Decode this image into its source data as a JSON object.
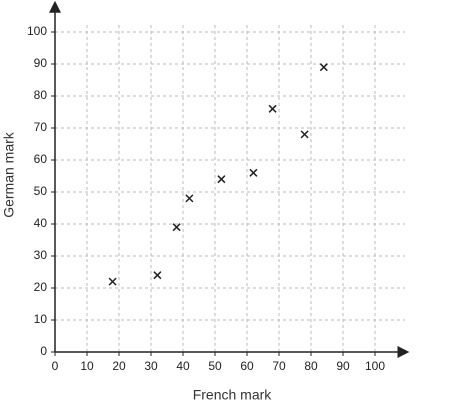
{
  "chart_data": {
    "type": "scatter",
    "x_label": "French mark",
    "y_label": "German mark",
    "x": [
      18,
      32,
      38,
      42,
      52,
      62,
      68,
      78,
      84
    ],
    "y": [
      22,
      24,
      39,
      48,
      54,
      56,
      76,
      68,
      89
    ],
    "marker": "x",
    "color": "#222222",
    "xlim": [
      0,
      110
    ],
    "ylim": [
      0,
      109
    ],
    "xticks": [
      0,
      10,
      20,
      30,
      40,
      50,
      60,
      70,
      80,
      90,
      100
    ],
    "yticks": [
      0,
      10,
      20,
      30,
      40,
      50,
      60,
      70,
      80,
      90,
      100
    ],
    "grid": true
  }
}
